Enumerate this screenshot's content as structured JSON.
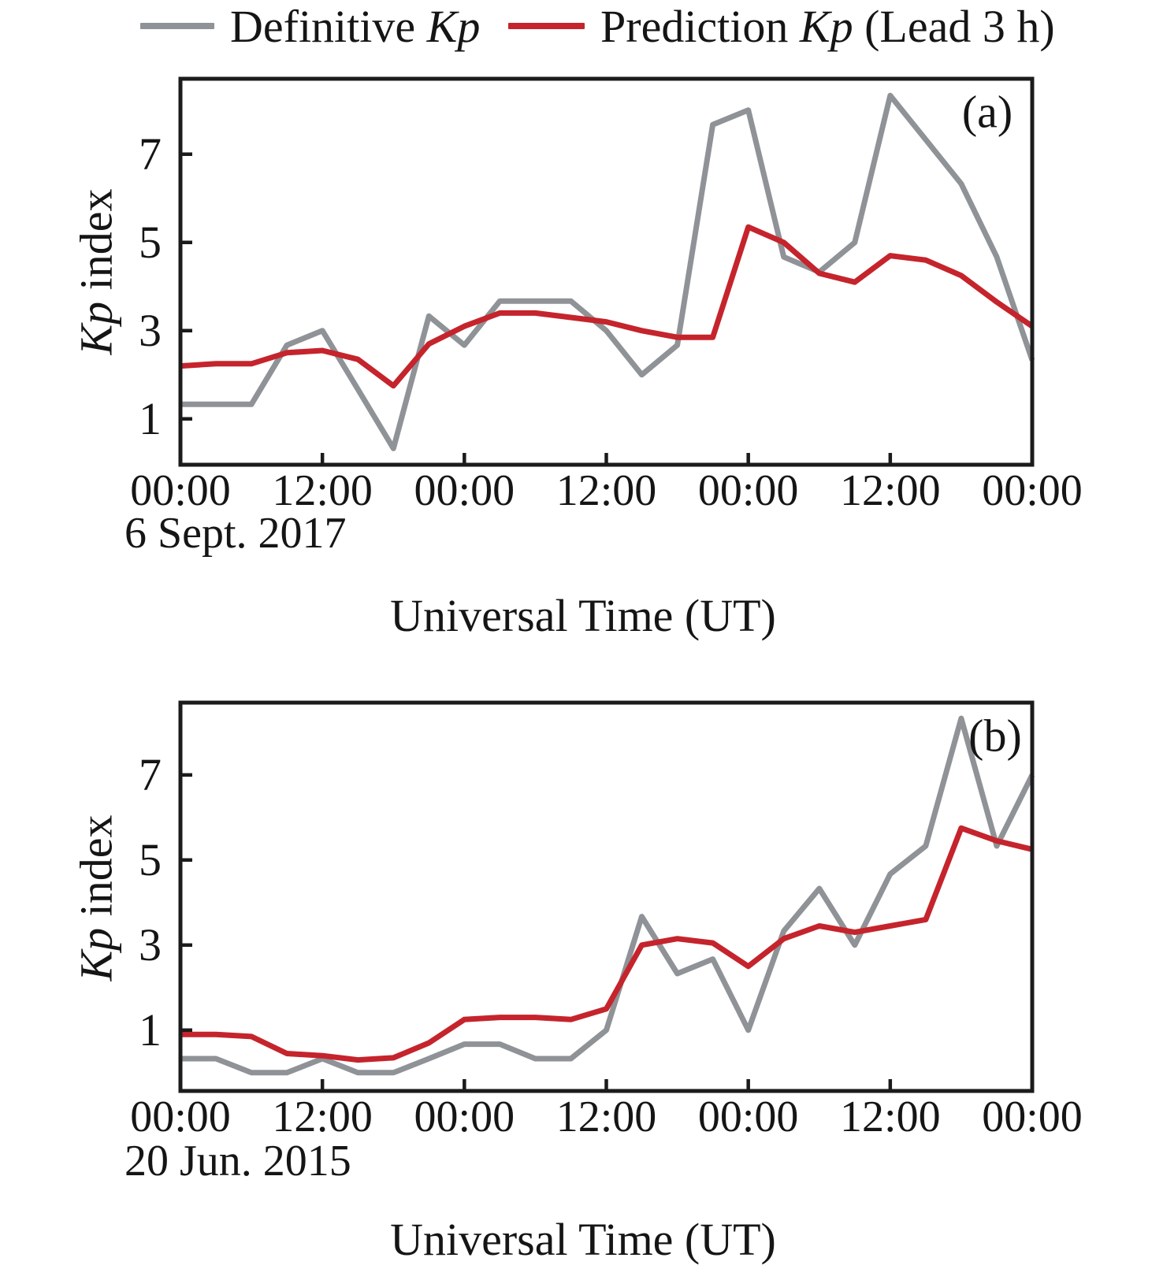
{
  "legend": {
    "items": [
      {
        "name": "definitive-kp",
        "prefix": "Definitive ",
        "italic": "Kp",
        "suffix": "",
        "color": "#8f9296"
      },
      {
        "name": "prediction-kp",
        "prefix": "Prediction ",
        "italic": "Kp",
        "suffix": " (Lead 3 h)",
        "color": "#c5242c"
      }
    ]
  },
  "chart_data": [
    {
      "type": "line",
      "panel_label": "(a)",
      "date_label": "6 Sept. 2017",
      "xlabel": "Universal Time (UT)",
      "ylabel_italic": "Kp",
      "ylabel_rest": " index",
      "xlim": [
        0,
        72
      ],
      "ylim": [
        -0.04,
        8.71
      ],
      "grid": false,
      "legend_position": "top",
      "x_unit": "hours from 6 Sept. 2017 00:00 UT",
      "x_hours": [
        0,
        3,
        6,
        9,
        12,
        15,
        18,
        21,
        24,
        27,
        30,
        33,
        36,
        39,
        42,
        45,
        48,
        51,
        54,
        57,
        60,
        63,
        66,
        69,
        72
      ],
      "x_tick_hours": [
        0,
        12,
        24,
        36,
        48,
        60,
        72
      ],
      "x_tick_labels": [
        "00:00",
        "12:00",
        "00:00",
        "12:00",
        "00:00",
        "12:00",
        "00:00"
      ],
      "y_ticks": [
        1,
        3,
        5,
        7
      ],
      "series": [
        {
          "name": "Definitive Kp",
          "color": "#8f9296",
          "values": [
            1.33,
            1.33,
            1.33,
            2.67,
            3.0,
            1.67,
            0.33,
            3.33,
            2.67,
            3.67,
            3.67,
            3.67,
            3.0,
            2.0,
            2.67,
            7.67,
            8.0,
            4.67,
            4.33,
            5.0,
            8.33,
            7.33,
            6.33,
            4.67,
            2.33
          ]
        },
        {
          "name": "Prediction Kp (Lead 3 h)",
          "color": "#c5242c",
          "values": [
            2.2,
            2.25,
            2.25,
            2.5,
            2.55,
            2.35,
            1.75,
            2.7,
            3.1,
            3.4,
            3.4,
            3.3,
            3.2,
            3.0,
            2.85,
            2.85,
            5.35,
            5.0,
            4.3,
            4.1,
            4.7,
            4.6,
            4.25,
            3.65,
            3.1
          ]
        }
      ]
    },
    {
      "type": "line",
      "panel_label": "(b)",
      "date_label": "20 Jun. 2015",
      "xlabel": "Universal Time (UT)",
      "ylabel_italic": "Kp",
      "ylabel_rest": " index",
      "xlim": [
        0,
        72
      ],
      "ylim": [
        -0.43,
        8.7
      ],
      "grid": false,
      "legend_position": "top",
      "x_unit": "hours from 20 Jun. 2015 00:00 UT",
      "x_hours": [
        0,
        3,
        6,
        9,
        12,
        15,
        18,
        21,
        24,
        27,
        30,
        33,
        36,
        39,
        42,
        45,
        48,
        51,
        54,
        57,
        60,
        63,
        66,
        69,
        72
      ],
      "x_tick_hours": [
        0,
        12,
        24,
        36,
        48,
        60,
        72
      ],
      "x_tick_labels": [
        "00:00",
        "12:00",
        "00:00",
        "12:00",
        "00:00",
        "12:00",
        "00:00"
      ],
      "y_ticks": [
        1,
        3,
        5,
        7
      ],
      "series": [
        {
          "name": "Definitive Kp",
          "color": "#8f9296",
          "values": [
            0.33,
            0.33,
            0.0,
            0.0,
            0.33,
            0.0,
            0.0,
            0.33,
            0.67,
            0.67,
            0.33,
            0.33,
            1.0,
            3.67,
            2.33,
            2.67,
            1.0,
            3.33,
            4.33,
            3.0,
            4.67,
            5.33,
            8.33,
            5.33,
            7.0
          ]
        },
        {
          "name": "Prediction Kp (Lead 3 h)",
          "color": "#c5242c",
          "values": [
            0.9,
            0.9,
            0.85,
            0.45,
            0.4,
            0.3,
            0.35,
            0.7,
            1.25,
            1.3,
            1.3,
            1.25,
            1.5,
            3.0,
            3.15,
            3.05,
            2.5,
            3.15,
            3.45,
            3.3,
            3.45,
            3.6,
            5.75,
            5.45,
            5.25
          ]
        }
      ]
    }
  ]
}
